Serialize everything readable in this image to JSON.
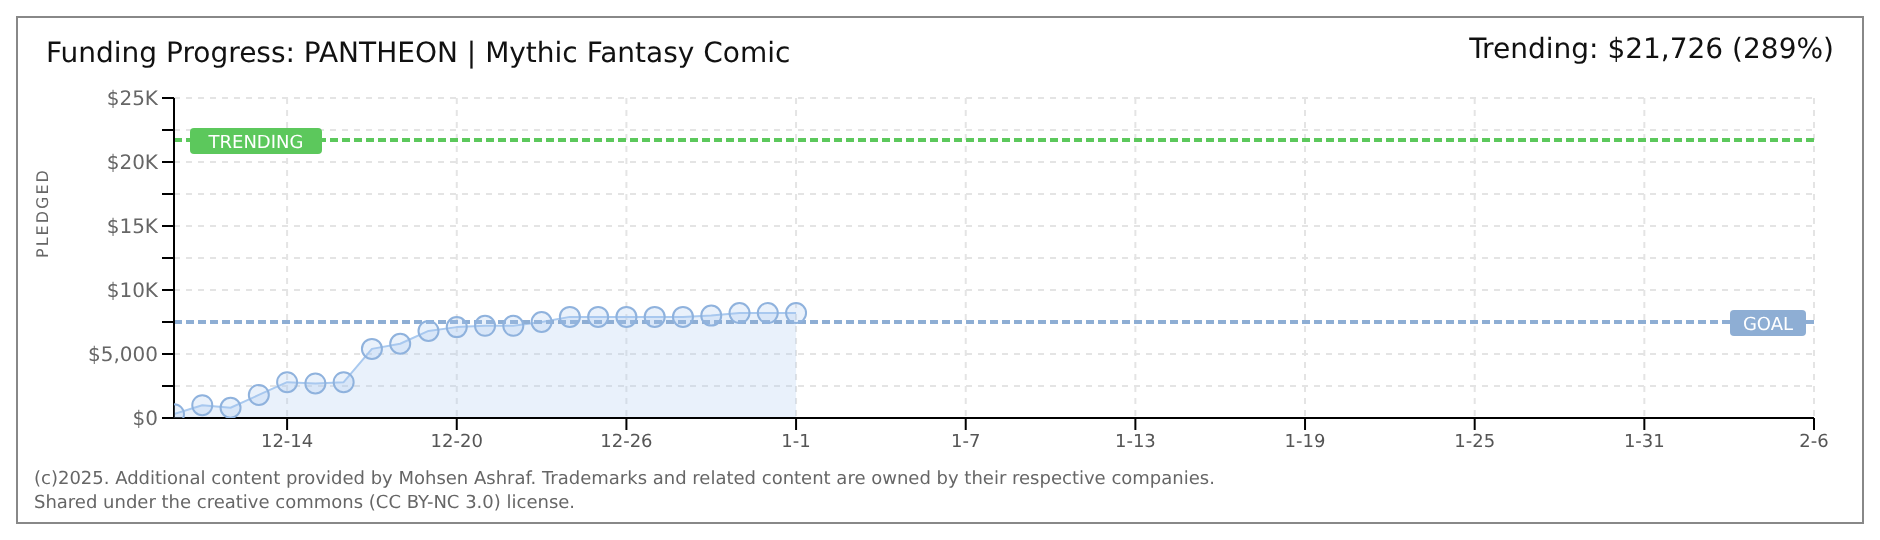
{
  "chart_data": {
    "type": "area",
    "title": "Funding Progress: PANTHEON | Mythic Fantasy Comic",
    "subtitle": "Trending: $21,726 (289%)",
    "ylabel": "PLEDGED",
    "x": [
      "2024-12-10",
      "2024-12-11",
      "2024-12-12",
      "2024-12-13",
      "2024-12-14",
      "2024-12-15",
      "2024-12-16",
      "2024-12-17",
      "2024-12-18",
      "2024-12-19",
      "2024-12-20",
      "2024-12-21",
      "2024-12-22",
      "2024-12-23",
      "2024-12-24",
      "2024-12-25",
      "2024-12-26",
      "2024-12-27",
      "2024-12-28",
      "2024-12-29",
      "2024-12-30",
      "2024-12-31",
      "2025-01-01"
    ],
    "series": [
      {
        "color": "#a9c9ef",
        "values": [
          300,
          1000,
          800,
          1800,
          2800,
          2700,
          2800,
          5400,
          5800,
          6800,
          7100,
          7200,
          7200,
          7500,
          7900,
          7900,
          7900,
          7900,
          7900,
          8000,
          8200,
          8200,
          8200
        ]
      }
    ],
    "marker": "circle",
    "grid": true,
    "xlim": [
      "2024-12-10",
      "2025-02-06"
    ],
    "xticks": [
      {
        "value": "2024-12-14",
        "label": "12-14"
      },
      {
        "value": "2024-12-20",
        "label": "12-20"
      },
      {
        "value": "2024-12-26",
        "label": "12-26"
      },
      {
        "value": "2025-01-01",
        "label": "1-1"
      },
      {
        "value": "2025-01-07",
        "label": "1-7"
      },
      {
        "value": "2025-01-13",
        "label": "1-13"
      },
      {
        "value": "2025-01-19",
        "label": "1-19"
      },
      {
        "value": "2025-01-25",
        "label": "1-25"
      },
      {
        "value": "2025-01-31",
        "label": "1-31"
      },
      {
        "value": "2025-02-06",
        "label": "2-6"
      }
    ],
    "ylim": [
      0,
      25000
    ],
    "yticks": [
      {
        "value": 0,
        "label": "$0"
      },
      {
        "value": 2500,
        "label": null
      },
      {
        "value": 5000,
        "label": "$5,000"
      },
      {
        "value": 7500,
        "label": null
      },
      {
        "value": 10000,
        "label": "$10K"
      },
      {
        "value": 12500,
        "label": null
      },
      {
        "value": 15000,
        "label": "$15K"
      },
      {
        "value": 17500,
        "label": null
      },
      {
        "value": 20000,
        "label": "$20K"
      },
      {
        "value": 22500,
        "label": null
      },
      {
        "value": 25000,
        "label": "$25K"
      }
    ],
    "ref_lines": [
      {
        "axis": "y",
        "value": 21726,
        "label": "TRENDING",
        "color": "#5cc85c",
        "line_style": "dashed"
      },
      {
        "axis": "y",
        "value": 7500,
        "label": "GOAL",
        "color": "#8eaed4",
        "line_style": "dashed"
      }
    ],
    "annotations": [
      "(c)2025. Additional content provided by Mohsen Ashraf. Trademarks and related content are owned by their respective companies.",
      "Shared under the creative commons (CC BY-NC 3.0) license."
    ]
  }
}
